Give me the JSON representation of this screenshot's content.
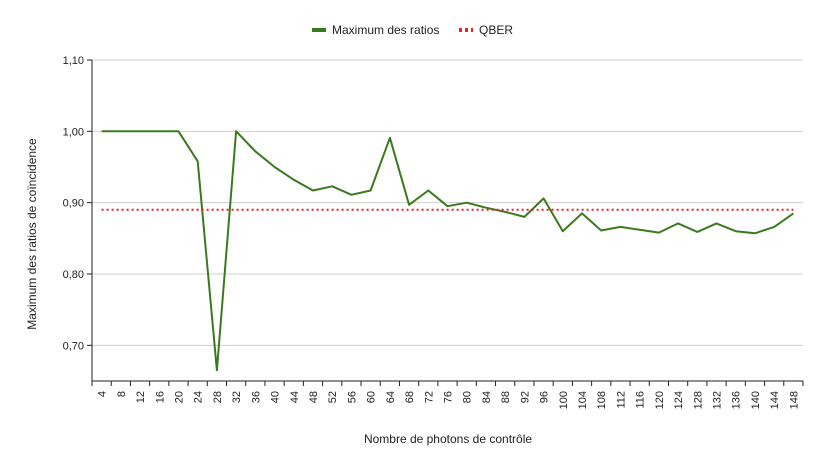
{
  "chart_data": {
    "type": "line",
    "title": "",
    "xlabel": "Nombre de photons de contrôle",
    "ylabel": "Maximum des ratios de coïncidence",
    "x": [
      4,
      8,
      12,
      16,
      20,
      24,
      28,
      32,
      36,
      40,
      44,
      48,
      52,
      56,
      60,
      64,
      68,
      72,
      76,
      80,
      84,
      88,
      92,
      96,
      100,
      104,
      108,
      112,
      116,
      120,
      124,
      128,
      132,
      136,
      140,
      144,
      148
    ],
    "ylim": [
      0.65,
      1.1
    ],
    "yticks": [
      0.7,
      0.8,
      0.9,
      1.0,
      1.1
    ],
    "ytick_labels": [
      "0,70",
      "0,80",
      "0,90",
      "1,00",
      "1,10"
    ],
    "grid": true,
    "legend_position": "top",
    "series": [
      {
        "name": "Maximum des ratios",
        "color": "#3a7a1e",
        "style": "solid",
        "values": [
          1.0,
          1.0,
          1.0,
          1.0,
          1.0,
          0.958,
          0.665,
          1.0,
          0.972,
          0.95,
          0.932,
          0.917,
          0.923,
          0.911,
          0.917,
          0.991,
          0.897,
          0.917,
          0.895,
          0.9,
          0.893,
          0.887,
          0.88,
          0.906,
          0.86,
          0.885,
          0.861,
          0.866,
          0.862,
          0.858,
          0.871,
          0.859,
          0.871,
          0.86,
          0.857,
          0.866,
          0.885
        ]
      },
      {
        "name": "QBER",
        "color": "#e8212a",
        "style": "dotted",
        "values": [
          0.89,
          0.89,
          0.89,
          0.89,
          0.89,
          0.89,
          0.89,
          0.89,
          0.89,
          0.89,
          0.89,
          0.89,
          0.89,
          0.89,
          0.89,
          0.89,
          0.89,
          0.89,
          0.89,
          0.89,
          0.89,
          0.89,
          0.89,
          0.89,
          0.89,
          0.89,
          0.89,
          0.89,
          0.89,
          0.89,
          0.89,
          0.89,
          0.89,
          0.89,
          0.89,
          0.89,
          0.89
        ]
      }
    ]
  }
}
